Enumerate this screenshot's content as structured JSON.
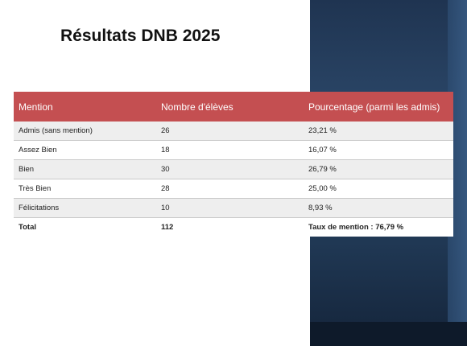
{
  "slide": {
    "title": "Résultats DNB 2025",
    "colors": {
      "header": "#c44f51",
      "panel": "#203854"
    }
  },
  "table": {
    "headers": [
      "Mention",
      "Nombre d'élèves",
      "Pourcentage (parmi les admis)"
    ],
    "rows": [
      {
        "mention": "Admis (sans mention)",
        "count": "26",
        "percent": "23,21 %"
      },
      {
        "mention": "Assez Bien",
        "count": "18",
        "percent": "16,07 %"
      },
      {
        "mention": "Bien",
        "count": "30",
        "percent": "26,79 %"
      },
      {
        "mention": "Très Bien",
        "count": "28",
        "percent": "25,00 %"
      },
      {
        "mention": "Félicitations",
        "count": "10",
        "percent": "8,93 %"
      }
    ],
    "total": {
      "label": "Total",
      "count": "112",
      "rate": "Taux de mention : 76,79 %"
    }
  }
}
